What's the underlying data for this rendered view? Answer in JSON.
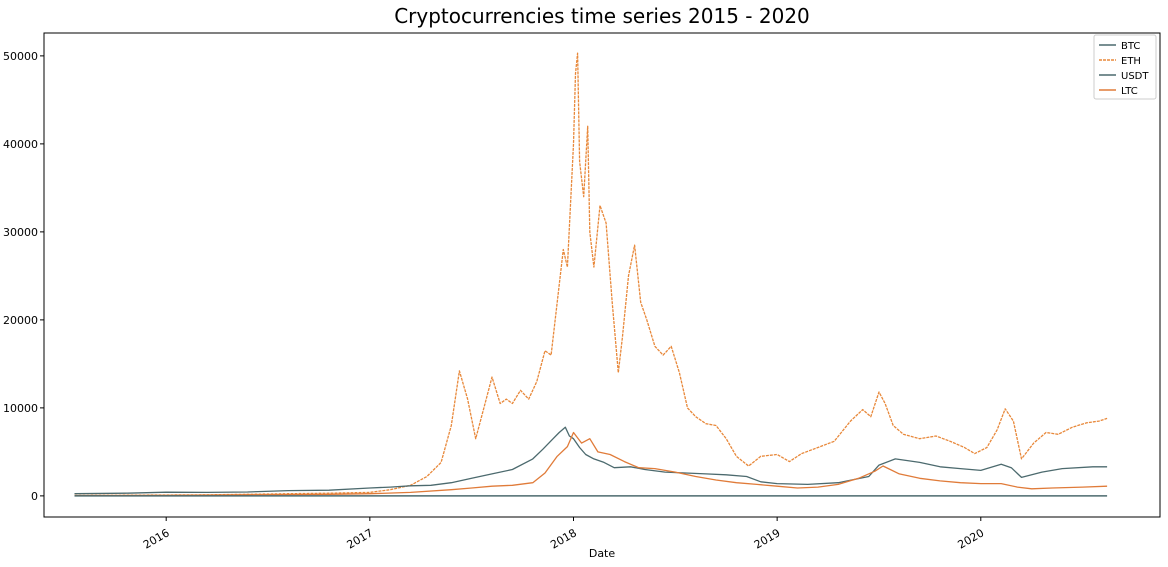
{
  "chart_data": {
    "type": "line",
    "title": "Cryptocurrencies time series 2015 - 2020",
    "xlabel": "Date",
    "ylabel": "",
    "xlim": [
      2015.4,
      2020.88
    ],
    "ylim": [
      -2400,
      52600
    ],
    "y_ticks": [
      0,
      10000,
      20000,
      30000,
      40000,
      50000
    ],
    "x_ticks": [
      {
        "value": 2016.0,
        "label": "2016"
      },
      {
        "value": 2017.0,
        "label": "2017"
      },
      {
        "value": 2018.0,
        "label": "2018"
      },
      {
        "value": 2019.0,
        "label": "2019"
      },
      {
        "value": 2020.0,
        "label": "2020"
      }
    ],
    "legend": {
      "location": "top-right",
      "entries": [
        "BTC",
        "ETH",
        "USDT",
        "LTC"
      ]
    },
    "colors": {
      "BTC": "#4c6a6e",
      "ETH": "#e8883a",
      "USDT": "#4c6a6e",
      "LTC": "#e07b39"
    },
    "series": [
      {
        "name": "BTC",
        "x": [
          2015.55,
          2015.8,
          2016.0,
          2016.2,
          2016.4,
          2016.6,
          2016.8,
          2017.0,
          2017.1,
          2017.2,
          2017.3,
          2017.4,
          2017.5,
          2017.6,
          2017.7,
          2017.8,
          2017.85,
          2017.9,
          2017.93,
          2017.96,
          2017.98,
          2018.0,
          2018.03,
          2018.06,
          2018.1,
          2018.15,
          2018.2,
          2018.28,
          2018.35,
          2018.45,
          2018.55,
          2018.65,
          2018.75,
          2018.85,
          2018.92,
          2019.0,
          2019.15,
          2019.3,
          2019.45,
          2019.5,
          2019.58,
          2019.7,
          2019.8,
          2019.9,
          2020.0,
          2020.1,
          2020.15,
          2020.2,
          2020.3,
          2020.4,
          2020.55,
          2020.62
        ],
        "values": [
          250,
          300,
          420,
          400,
          440,
          600,
          650,
          900,
          1000,
          1150,
          1200,
          1500,
          2000,
          2500,
          3000,
          4200,
          5300,
          6500,
          7200,
          7800,
          6800,
          6500,
          5500,
          4700,
          4200,
          3800,
          3200,
          3300,
          3000,
          2700,
          2600,
          2500,
          2400,
          2200,
          1600,
          1400,
          1300,
          1500,
          2200,
          3500,
          4200,
          3800,
          3300,
          3100,
          2900,
          3600,
          3200,
          2100,
          2700,
          3100,
          3300,
          3300
        ]
      },
      {
        "name": "ETH",
        "x": [
          2015.55,
          2015.8,
          2016.0,
          2016.2,
          2016.4,
          2016.6,
          2016.8,
          2017.0,
          2017.1,
          2017.2,
          2017.28,
          2017.35,
          2017.4,
          2017.44,
          2017.48,
          2017.52,
          2017.56,
          2017.6,
          2017.64,
          2017.67,
          2017.7,
          2017.74,
          2017.78,
          2017.82,
          2017.86,
          2017.89,
          2017.92,
          2017.95,
          2017.97,
          2018.0,
          2018.01,
          2018.02,
          2018.03,
          2018.05,
          2018.07,
          2018.08,
          2018.1,
          2018.13,
          2018.16,
          2018.19,
          2018.22,
          2018.24,
          2018.27,
          2018.3,
          2018.33,
          2018.36,
          2018.4,
          2018.44,
          2018.48,
          2018.52,
          2018.56,
          2018.6,
          2018.65,
          2018.7,
          2018.75,
          2018.8,
          2018.86,
          2018.92,
          2019.0,
          2019.06,
          2019.12,
          2019.2,
          2019.28,
          2019.36,
          2019.42,
          2019.46,
          2019.5,
          2019.53,
          2019.57,
          2019.62,
          2019.7,
          2019.78,
          2019.85,
          2019.92,
          2019.97,
          2020.03,
          2020.08,
          2020.12,
          2020.16,
          2020.2,
          2020.26,
          2020.32,
          2020.38,
          2020.45,
          2020.52,
          2020.58,
          2020.62
        ],
        "values": [
          50,
          80,
          100,
          120,
          180,
          250,
          300,
          400,
          700,
          1200,
          2200,
          3800,
          8000,
          14200,
          11000,
          6500,
          10000,
          13500,
          10500,
          11000,
          10500,
          12000,
          11000,
          13000,
          16500,
          16000,
          22000,
          28000,
          26000,
          40000,
          48000,
          50300,
          38000,
          34000,
          42000,
          30000,
          26000,
          33000,
          31000,
          22000,
          14000,
          18000,
          25000,
          28500,
          22000,
          20000,
          17000,
          16000,
          17000,
          14000,
          10000,
          9000,
          8200,
          8000,
          6500,
          4500,
          3400,
          4500,
          4700,
          3900,
          4800,
          5500,
          6200,
          8500,
          9800,
          9000,
          11800,
          10500,
          8000,
          7000,
          6500,
          6800,
          6200,
          5500,
          4800,
          5500,
          7500,
          9900,
          8500,
          4200,
          6000,
          7200,
          7000,
          7800,
          8300,
          8500,
          8800
        ]
      },
      {
        "name": "USDT",
        "x": [
          2015.55,
          2016.0,
          2016.5,
          2017.0,
          2017.5,
          2018.0,
          2018.5,
          2019.0,
          2019.5,
          2020.0,
          2020.62
        ],
        "values": [
          1,
          1,
          1,
          1,
          1,
          1,
          1,
          1,
          1,
          1,
          1
        ]
      },
      {
        "name": "LTC",
        "x": [
          2015.55,
          2015.8,
          2016.0,
          2016.2,
          2016.4,
          2016.6,
          2016.8,
          2017.0,
          2017.2,
          2017.4,
          2017.5,
          2017.6,
          2017.7,
          2017.8,
          2017.86,
          2017.92,
          2017.97,
          2018.0,
          2018.04,
          2018.08,
          2018.12,
          2018.18,
          2018.25,
          2018.32,
          2018.4,
          2018.5,
          2018.6,
          2018.7,
          2018.8,
          2018.9,
          2019.0,
          2019.1,
          2019.2,
          2019.3,
          2019.4,
          2019.48,
          2019.52,
          2019.6,
          2019.7,
          2019.8,
          2019.9,
          2020.0,
          2020.1,
          2020.18,
          2020.25,
          2020.35,
          2020.5,
          2020.62
        ],
        "values": [
          30,
          40,
          50,
          80,
          120,
          150,
          180,
          250,
          400,
          700,
          900,
          1100,
          1200,
          1500,
          2600,
          4500,
          5600,
          7200,
          6000,
          6500,
          5000,
          4700,
          3900,
          3200,
          3100,
          2700,
          2200,
          1800,
          1500,
          1300,
          1100,
          900,
          1000,
          1300,
          2000,
          2800,
          3400,
          2500,
          2000,
          1700,
          1500,
          1400,
          1400,
          1000,
          800,
          900,
          1000,
          1100
        ]
      }
    ]
  }
}
